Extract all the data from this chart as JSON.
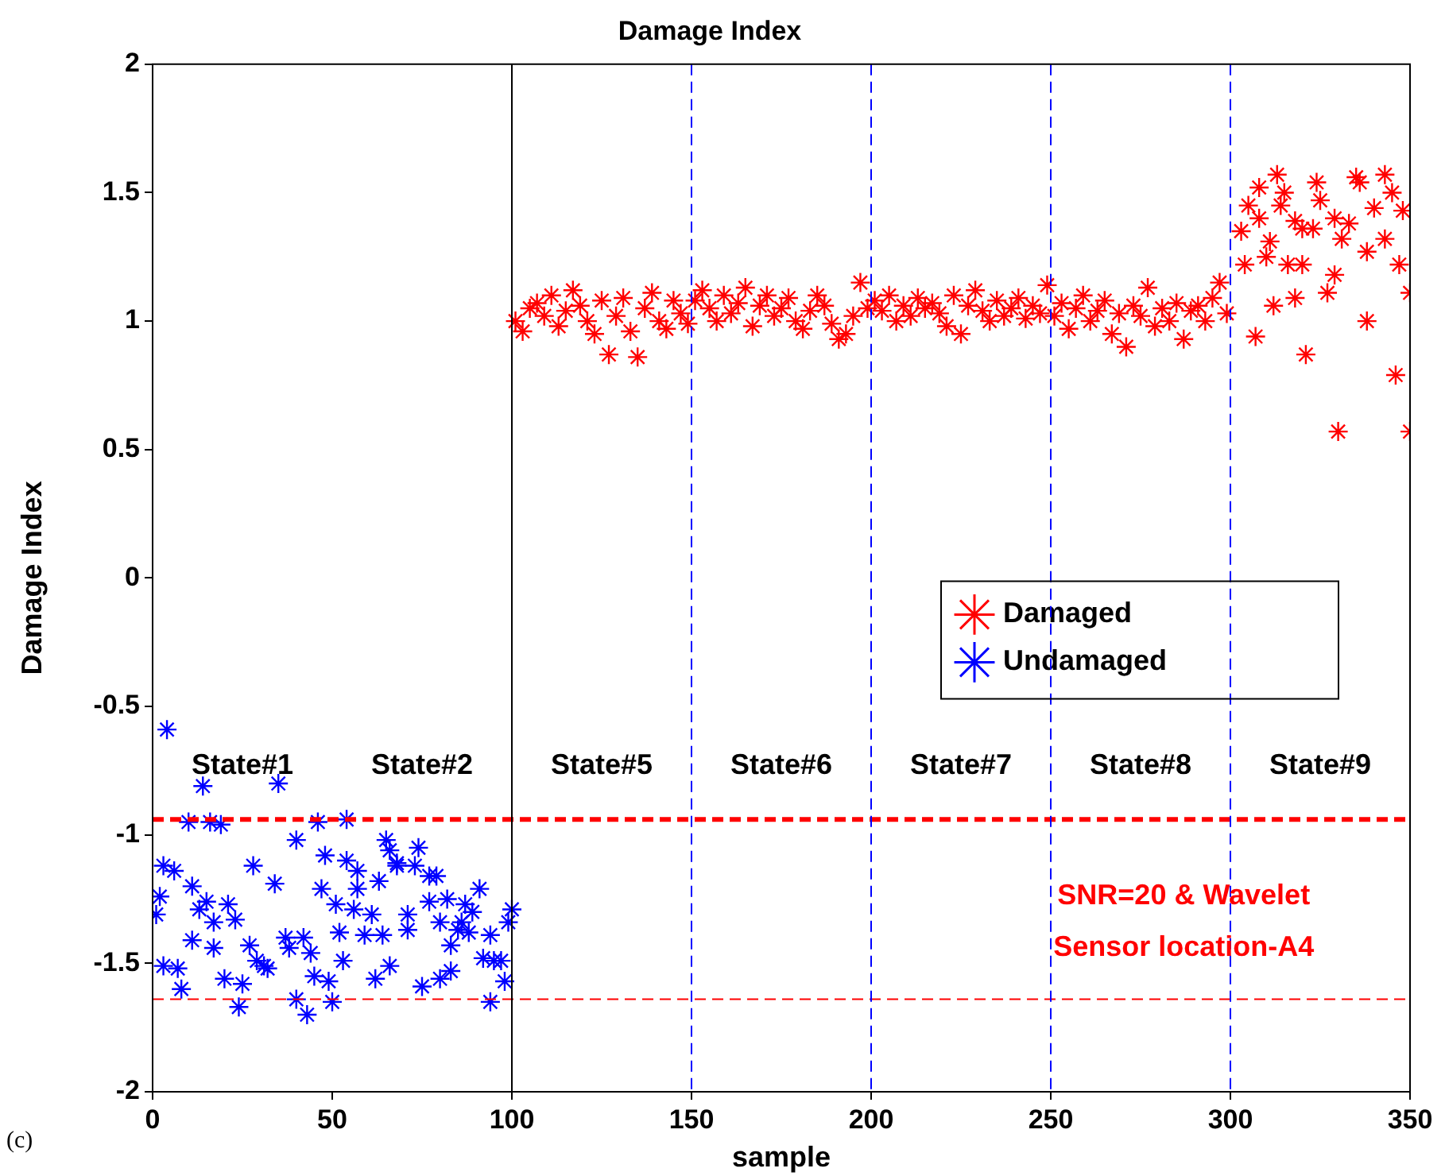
{
  "chart_data": {
    "type": "scatter",
    "title": "Damage Index",
    "xlabel": "sample",
    "ylabel": "Damage Index",
    "xlim": [
      0,
      350
    ],
    "xticks": [
      0,
      50,
      100,
      150,
      200,
      250,
      300,
      350
    ],
    "ylim": [
      -2,
      2
    ],
    "yticks": [
      -2,
      -1.5,
      -1,
      -0.5,
      0,
      0.5,
      1,
      1.5,
      2
    ],
    "grid": false,
    "legend": "right",
    "marker": "cross",
    "series": [
      {
        "name": "Damaged",
        "color": "#ff0000",
        "x": [
          101,
          103,
          105,
          107,
          109,
          111,
          113,
          115,
          117,
          119,
          121,
          123,
          125,
          127,
          129,
          131,
          133,
          135,
          137,
          139,
          141,
          143,
          145,
          147,
          149,
          151,
          153,
          155,
          157,
          159,
          161,
          163,
          165,
          167,
          169,
          171,
          173,
          175,
          177,
          179,
          181,
          183,
          185,
          187,
          189,
          191,
          193,
          195,
          197,
          199,
          201,
          203,
          205,
          207,
          209,
          211,
          213,
          215,
          217,
          219,
          221,
          223,
          225,
          227,
          229,
          231,
          233,
          235,
          237,
          239,
          241,
          243,
          245,
          247,
          249,
          251,
          253,
          255,
          257,
          259,
          261,
          263,
          265,
          267,
          269,
          271,
          273,
          275,
          277,
          279,
          281,
          283,
          285,
          287,
          289,
          291,
          293,
          295,
          297,
          299,
          303,
          304,
          305,
          307,
          308,
          308,
          310,
          311,
          312,
          313,
          314,
          315,
          316,
          318,
          318,
          320,
          320,
          321,
          323,
          324,
          325,
          327,
          329,
          329,
          330,
          331,
          333,
          335,
          336,
          338,
          338,
          340,
          343,
          343,
          345,
          346,
          347,
          348,
          350,
          350
        ],
        "values": [
          1.0,
          0.96,
          1.05,
          1.07,
          1.02,
          1.1,
          0.98,
          1.04,
          1.12,
          1.06,
          1.0,
          0.95,
          1.08,
          0.87,
          1.02,
          1.09,
          0.96,
          0.86,
          1.05,
          1.11,
          1.0,
          0.97,
          1.08,
          1.03,
          0.99,
          1.08,
          1.12,
          1.05,
          1.0,
          1.1,
          1.03,
          1.07,
          1.13,
          0.98,
          1.06,
          1.1,
          1.02,
          1.05,
          1.09,
          1.0,
          0.97,
          1.04,
          1.1,
          1.06,
          0.99,
          0.93,
          0.95,
          1.02,
          1.15,
          1.05,
          1.08,
          1.04,
          1.1,
          1.0,
          1.06,
          1.02,
          1.09,
          1.05,
          1.07,
          1.03,
          0.98,
          1.1,
          0.95,
          1.06,
          1.12,
          1.04,
          1.0,
          1.08,
          1.02,
          1.05,
          1.09,
          1.01,
          1.06,
          1.03,
          1.14,
          1.02,
          1.07,
          0.97,
          1.05,
          1.1,
          1.0,
          1.04,
          1.08,
          0.95,
          1.03,
          0.9,
          1.06,
          1.02,
          1.13,
          0.98,
          1.05,
          1.0,
          1.07,
          0.93,
          1.04,
          1.06,
          1.0,
          1.09,
          1.15,
          1.03,
          1.35,
          1.22,
          1.45,
          0.94,
          1.52,
          1.4,
          1.25,
          1.31,
          1.06,
          1.57,
          1.45,
          1.5,
          1.22,
          1.39,
          1.09,
          1.36,
          1.22,
          0.87,
          1.36,
          1.54,
          1.47,
          1.11,
          1.4,
          1.18,
          0.57,
          1.32,
          1.38,
          1.56,
          1.54,
          1.27,
          1.0,
          1.44,
          1.57,
          1.32,
          1.5,
          0.79,
          1.22,
          1.43,
          1.11,
          0.57
        ]
      },
      {
        "name": "Undamaged",
        "color": "#0000ff",
        "x": [
          1,
          2,
          3,
          3,
          4,
          6,
          7,
          8,
          10,
          11,
          11,
          13,
          14,
          15,
          16,
          17,
          17,
          19,
          20,
          21,
          23,
          24,
          25,
          27,
          28,
          29,
          31,
          32,
          34,
          35,
          37,
          38,
          40,
          40,
          42,
          43,
          44,
          45,
          46,
          47,
          48,
          49,
          50,
          51,
          52,
          53,
          54,
          54,
          56,
          57,
          57,
          59,
          61,
          62,
          63,
          64,
          65,
          66,
          66,
          68,
          68,
          71,
          71,
          73,
          74,
          75,
          77,
          77,
          79,
          80,
          80,
          82,
          83,
          83,
          85,
          86,
          87,
          88,
          89,
          91,
          92,
          94,
          94,
          95,
          97,
          98,
          99,
          100
        ],
        "values": [
          -1.31,
          -1.24,
          -1.51,
          -1.12,
          -0.59,
          -1.14,
          -1.52,
          -1.6,
          -0.95,
          -1.41,
          -1.2,
          -1.29,
          -0.81,
          -1.26,
          -0.95,
          -1.34,
          -1.44,
          -0.96,
          -1.56,
          -1.27,
          -1.33,
          -1.67,
          -1.58,
          -1.43,
          -1.12,
          -1.49,
          -1.51,
          -1.52,
          -1.19,
          -0.8,
          -1.4,
          -1.44,
          -1.64,
          -1.02,
          -1.4,
          -1.7,
          -1.46,
          -1.55,
          -0.95,
          -1.21,
          -1.08,
          -1.57,
          -1.65,
          -1.27,
          -1.38,
          -1.49,
          -0.94,
          -1.1,
          -1.29,
          -1.14,
          -1.21,
          -1.39,
          -1.31,
          -1.56,
          -1.18,
          -1.39,
          -1.02,
          -1.06,
          -1.51,
          -1.11,
          -1.12,
          -1.31,
          -1.37,
          -1.12,
          -1.05,
          -1.59,
          -1.26,
          -1.16,
          -1.16,
          -1.34,
          -1.56,
          -1.25,
          -1.53,
          -1.43,
          -1.37,
          -1.34,
          -1.27,
          -1.38,
          -1.3,
          -1.21,
          -1.48,
          -1.39,
          -1.65,
          -1.49,
          -1.49,
          -1.57,
          -1.34,
          -1.29
        ]
      }
    ],
    "ref_lines": [
      {
        "axis": "y",
        "value": -0.94,
        "color": "#ff0000",
        "line_style": "dashed"
      },
      {
        "axis": "y",
        "value": -1.64,
        "color": "#ff0000",
        "line_style": "dashed"
      },
      {
        "axis": "x",
        "value": 100,
        "color": "#000000",
        "line_style": "solid"
      },
      {
        "axis": "x",
        "value": 150,
        "color": "#0000ff",
        "line_style": "dashed"
      },
      {
        "axis": "x",
        "value": 200,
        "color": "#0000ff",
        "line_style": "dashed"
      },
      {
        "axis": "x",
        "value": 250,
        "color": "#0000ff",
        "line_style": "dashed"
      },
      {
        "axis": "x",
        "value": 300,
        "color": "#0000ff",
        "line_style": "dashed"
      }
    ],
    "annotations": [
      "State#1",
      "State#2",
      "State#5",
      "State#6",
      "State#7",
      "State#8",
      "State#9",
      "SNR=20 & Wavelet",
      "Sensor location-A4",
      "(c)"
    ]
  }
}
